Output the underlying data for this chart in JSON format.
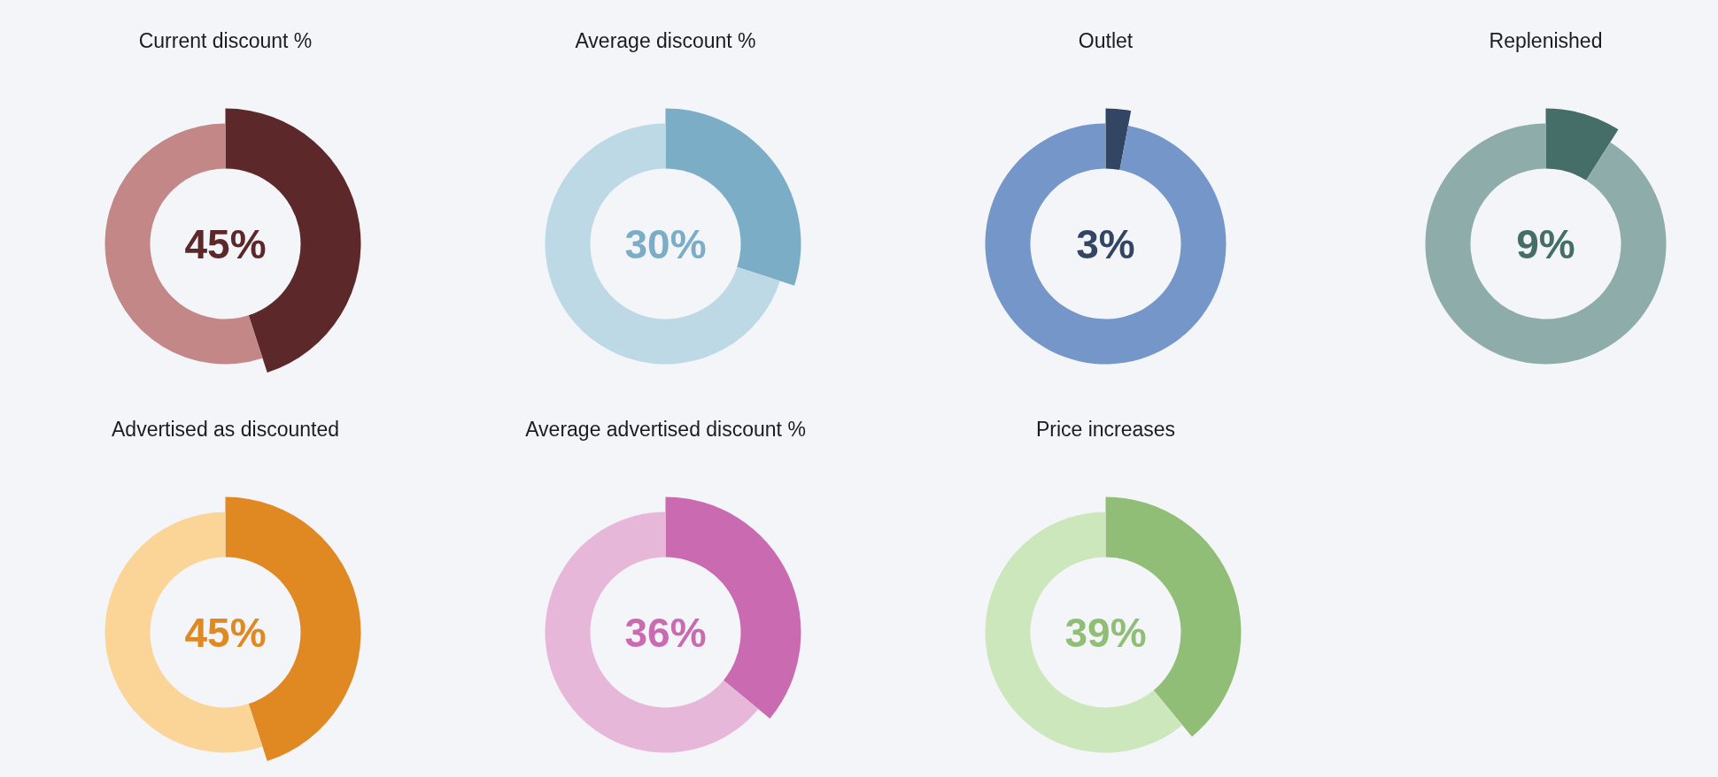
{
  "chart_data": [
    {
      "type": "donut",
      "title": "Current discount %",
      "categories": [
        null,
        null
      ],
      "values": [
        45,
        55
      ],
      "colors": [
        "#5c282a",
        "#c38787"
      ],
      "annotations": [
        "45%"
      ]
    },
    {
      "type": "donut",
      "title": "Average discount %",
      "categories": [
        null,
        null
      ],
      "values": [
        30,
        70
      ],
      "colors": [
        "#7badc7",
        "#bdd9e6"
      ],
      "annotations": [
        "30%"
      ]
    },
    {
      "type": "donut",
      "title": "Outlet",
      "categories": [
        null,
        null
      ],
      "values": [
        3,
        97
      ],
      "colors": [
        "#324663",
        "#7496c9"
      ],
      "annotations": [
        "3%"
      ]
    },
    {
      "type": "donut",
      "title": "Replenished",
      "categories": [
        null,
        null
      ],
      "values": [
        9,
        91
      ],
      "colors": [
        "#466e68",
        "#8eaca9"
      ],
      "annotations": [
        "9%"
      ]
    },
    {
      "type": "donut",
      "title": "Advertised as discounted",
      "categories": [
        null,
        null
      ],
      "values": [
        45,
        55
      ],
      "colors": [
        "#e08822",
        "#fbd498"
      ],
      "annotations": [
        "45%"
      ]
    },
    {
      "type": "donut",
      "title": "Average advertised discount %",
      "categories": [
        null,
        null
      ],
      "values": [
        36,
        64
      ],
      "colors": [
        "#ca6bb1",
        "#e7b7da"
      ],
      "annotations": [
        "36%"
      ]
    },
    {
      "type": "donut",
      "title": "Price increases",
      "categories": [
        null,
        null
      ],
      "values": [
        39,
        61
      ],
      "colors": [
        "#91be76",
        "#cbe7bb"
      ],
      "annotations": [
        "39%"
      ]
    }
  ]
}
